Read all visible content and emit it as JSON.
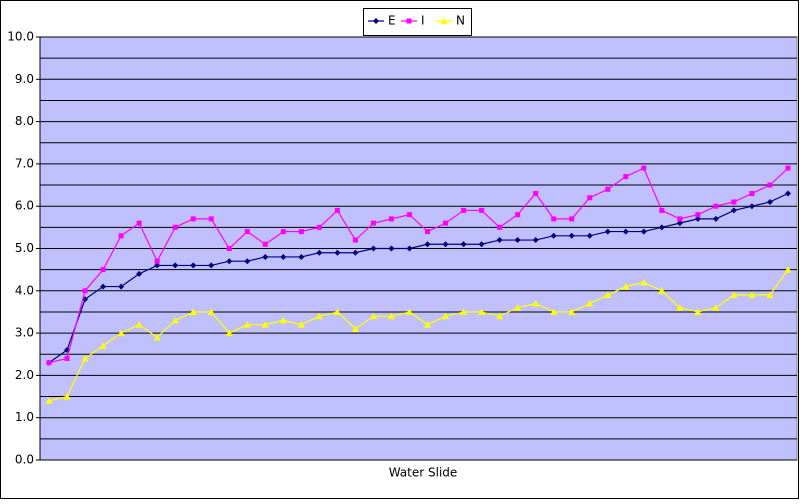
{
  "chart_data": {
    "type": "line",
    "x_label": "Water Slide",
    "categories": [
      null,
      null,
      null,
      null,
      null,
      null,
      null,
      null,
      null,
      null,
      null,
      null,
      null,
      null,
      null,
      null,
      null,
      null,
      null,
      null,
      null,
      null,
      null,
      null,
      null,
      null,
      null,
      null,
      null,
      null,
      null,
      null,
      null,
      null,
      null,
      null,
      null,
      null,
      null,
      null,
      null,
      null
    ],
    "series": [
      {
        "name": "E",
        "color": "#000080",
        "marker": "diamond",
        "values": [
          2.3,
          2.6,
          3.8,
          4.1,
          4.1,
          4.4,
          4.6,
          4.6,
          4.6,
          4.6,
          4.7,
          4.7,
          4.8,
          4.8,
          4.8,
          4.9,
          4.9,
          4.9,
          5.0,
          5.0,
          5.0,
          5.1,
          5.1,
          5.1,
          5.1,
          5.2,
          5.2,
          5.2,
          5.3,
          5.3,
          5.3,
          5.4,
          5.4,
          5.4,
          5.5,
          5.6,
          5.7,
          5.7,
          5.9,
          6.0,
          6.1,
          6.3
        ]
      },
      {
        "name": "I",
        "color": "#ff00ff",
        "marker": "square",
        "values": [
          2.3,
          2.4,
          4.0,
          4.5,
          5.3,
          5.6,
          4.7,
          5.5,
          5.7,
          5.7,
          5.0,
          5.4,
          5.1,
          5.4,
          5.4,
          5.5,
          5.9,
          5.2,
          5.6,
          5.7,
          5.8,
          5.4,
          5.6,
          5.9,
          5.9,
          5.5,
          5.8,
          6.3,
          5.7,
          5.7,
          6.2,
          6.4,
          6.7,
          6.9,
          5.9,
          5.7,
          5.8,
          6.0,
          6.1,
          6.3,
          6.5,
          6.9
        ]
      },
      {
        "name": "N",
        "color": "#ffff00",
        "marker": "triangle",
        "values": [
          1.4,
          1.5,
          2.4,
          2.7,
          3.0,
          3.2,
          2.9,
          3.3,
          3.5,
          3.5,
          3.0,
          3.2,
          3.2,
          3.3,
          3.2,
          3.4,
          3.5,
          3.1,
          3.4,
          3.4,
          3.5,
          3.2,
          3.4,
          3.5,
          3.5,
          3.4,
          3.6,
          3.7,
          3.5,
          3.5,
          3.7,
          3.9,
          4.1,
          4.2,
          4.0,
          3.6,
          3.5,
          3.6,
          3.9,
          3.9,
          3.9,
          4.5
        ]
      }
    ],
    "ylim": [
      0,
      10
    ],
    "yticks": [
      {
        "value": 0,
        "label": "0.0"
      },
      {
        "value": 1,
        "label": "1.0"
      },
      {
        "value": 2,
        "label": "2.0"
      },
      {
        "value": 3,
        "label": "3.0"
      },
      {
        "value": 4,
        "label": "4.0"
      },
      {
        "value": 5,
        "label": "5.0"
      },
      {
        "value": 6,
        "label": "6.0"
      },
      {
        "value": 7,
        "label": "7.0"
      },
      {
        "value": 8,
        "label": "8.0"
      },
      {
        "value": 9,
        "label": "9.0"
      },
      {
        "value": 10,
        "label": "10.0"
      }
    ],
    "minor_yticks": [
      0.5,
      1.5,
      2.5,
      3.5,
      4.5,
      5.5,
      6.5,
      7.5,
      8.5,
      9.5
    ],
    "grid": true,
    "plot_background": "#c0c0ff",
    "legend": "top"
  }
}
